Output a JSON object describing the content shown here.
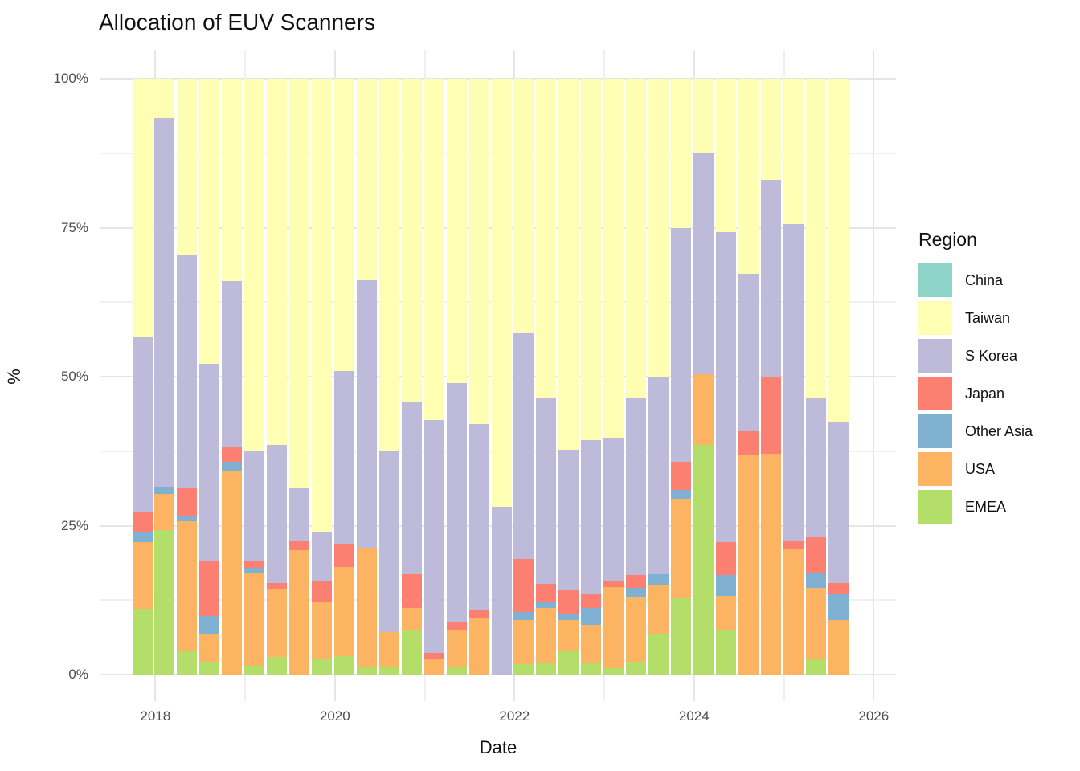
{
  "title": "Allocation of EUV Scanners",
  "x_axis": {
    "label": "Date",
    "ticks": [
      "2018",
      "2020",
      "2022",
      "2024",
      "2026"
    ]
  },
  "y_axis": {
    "label": "%",
    "ticks": [
      "0%",
      "25%",
      "50%",
      "75%",
      "100%"
    ]
  },
  "legend": {
    "title": "Region",
    "entries": [
      {
        "label": "China",
        "color": "#8DD3C7"
      },
      {
        "label": "Taiwan",
        "color": "#FFFFB3"
      },
      {
        "label": "S Korea",
        "color": "#BEBADA"
      },
      {
        "label": "Japan",
        "color": "#FB8072"
      },
      {
        "label": "Other Asia",
        "color": "#80B1D3"
      },
      {
        "label": "USA",
        "color": "#FDB462"
      },
      {
        "label": "EMEA",
        "color": "#B3DE69"
      }
    ]
  },
  "chart_data": {
    "type": "bar",
    "stacked": true,
    "normalized": "percent",
    "title": "Allocation of EUV Scanners",
    "xlabel": "Date",
    "ylabel": "%",
    "ylim": [
      0,
      100
    ],
    "y_tick_labels": [
      "0%",
      "25%",
      "50%",
      "75%",
      "100%"
    ],
    "x_tick_labels": [
      "2018",
      "2020",
      "2022",
      "2024",
      "2026"
    ],
    "grid": true,
    "legend_position": "right",
    "categories": [
      "2017-Q4",
      "2018-Q1",
      "2018-Q2",
      "2018-Q3",
      "2018-Q4",
      "2019-Q1",
      "2019-Q2",
      "2019-Q3",
      "2019-Q4",
      "2020-Q1",
      "2020-Q2",
      "2020-Q3",
      "2020-Q4",
      "2021-Q1",
      "2021-Q2",
      "2021-Q3",
      "2021-Q4",
      "2022-Q1",
      "2022-Q2",
      "2022-Q3",
      "2022-Q4",
      "2023-Q1",
      "2023-Q2",
      "2023-Q3",
      "2023-Q4",
      "2024-Q1",
      "2024-Q2",
      "2024-Q3",
      "2024-Q4",
      "2025-Q1",
      "2025-Q2",
      "2025-Q3"
    ],
    "series_bottom_to_top": [
      {
        "name": "EMEA",
        "color": "#B3DE69",
        "values": [
          11.0,
          24.3,
          4.0,
          2.2,
          0,
          1.5,
          2.9,
          0,
          2.7,
          3.1,
          1.3,
          1.2,
          7.6,
          0,
          1.3,
          0,
          0,
          1.8,
          1.9,
          4.0,
          2.0,
          1.1,
          2.2,
          6.8,
          12.8,
          38.6,
          7.6,
          0,
          0,
          0,
          2.7,
          0
        ]
      },
      {
        "name": "USA",
        "color": "#FDB462",
        "values": [
          11.2,
          6.0,
          21.7,
          4.7,
          34.1,
          15.5,
          11.4,
          20.9,
          9.6,
          15.0,
          20.0,
          5.9,
          3.6,
          2.7,
          6.1,
          9.4,
          0,
          7.3,
          9.3,
          5.1,
          6.3,
          13.6,
          10.9,
          8.2,
          16.7,
          11.8,
          5.6,
          36.8,
          37.0,
          21.1,
          11.8,
          9.1
        ]
      },
      {
        "name": "Other Asia",
        "color": "#80B1D3",
        "values": [
          1.8,
          1.2,
          1.0,
          2.9,
          1.6,
          0.9,
          0,
          0,
          0,
          0,
          0,
          0,
          0,
          0,
          0,
          0,
          0,
          1.4,
          1.1,
          1.2,
          2.9,
          0,
          1.4,
          1.8,
          1.5,
          0,
          3.5,
          0,
          0,
          0,
          2.5,
          4.5
        ]
      },
      {
        "name": "Japan",
        "color": "#FB8072",
        "values": [
          3.4,
          0,
          4.5,
          9.4,
          2.5,
          1.3,
          1.1,
          1.6,
          3.4,
          3.9,
          0,
          0,
          5.6,
          1.0,
          1.4,
          1.4,
          0,
          8.9,
          2.9,
          3.8,
          2.4,
          1.0,
          2.2,
          0,
          4.7,
          0,
          5.6,
          4.0,
          13.0,
          1.3,
          6.0,
          1.8
        ]
      },
      {
        "name": "S Korea",
        "color": "#BEBADA",
        "values": [
          29.3,
          61.9,
          39.1,
          32.9,
          27.9,
          18.3,
          23.1,
          8.7,
          8.2,
          29.0,
          44.9,
          30.5,
          28.9,
          39.0,
          40.1,
          31.2,
          28.1,
          37.9,
          31.2,
          23.7,
          25.8,
          24.1,
          29.8,
          33.0,
          39.3,
          37.2,
          51.9,
          26.4,
          33.0,
          53.2,
          23.3,
          26.9
        ]
      },
      {
        "name": "Taiwan",
        "color": "#FFFFB3",
        "values": [
          43.3,
          6.6,
          29.7,
          47.9,
          33.9,
          62.5,
          61.5,
          68.8,
          76.1,
          49.0,
          33.8,
          62.4,
          54.3,
          57.3,
          51.1,
          58.0,
          71.9,
          42.7,
          53.6,
          62.2,
          60.6,
          60.2,
          53.5,
          50.2,
          25.0,
          12.4,
          25.8,
          32.8,
          17.0,
          24.4,
          53.7,
          57.7
        ]
      },
      {
        "name": "China",
        "color": "#8DD3C7",
        "values": [
          0,
          0,
          0,
          0,
          0,
          0,
          0,
          0,
          0,
          0,
          0,
          0,
          0,
          0,
          0,
          0,
          0,
          0,
          0,
          0,
          0,
          0,
          0,
          0,
          0,
          0,
          0,
          0,
          0,
          0,
          0,
          0
        ]
      }
    ]
  }
}
